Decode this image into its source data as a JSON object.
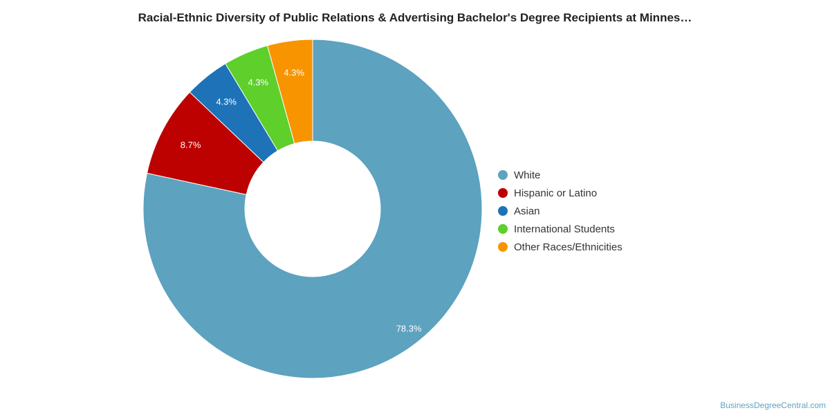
{
  "chart_data": {
    "type": "pie",
    "title": "Racial-Ethnic Diversity of Public Relations & Advertising Bachelor's Degree Recipients at Minnes…",
    "donut": true,
    "legend_position": "right",
    "slices": [
      {
        "label": "White",
        "value": 78.3,
        "value_label": "78.3%",
        "color": "#5da2bf"
      },
      {
        "label": "Hispanic or Latino",
        "value": 8.7,
        "value_label": "8.7%",
        "color": "#bd0000"
      },
      {
        "label": "Asian",
        "value": 4.3,
        "value_label": "4.3%",
        "color": "#1e72b8"
      },
      {
        "label": "International Students",
        "value": 4.3,
        "value_label": "4.3%",
        "color": "#5fcf2b"
      },
      {
        "label": "Other Races/Ethnicities",
        "value": 4.3,
        "value_label": "4.3%",
        "color": "#f89400"
      }
    ]
  },
  "credit": "BusinessDegreeCentral.com"
}
